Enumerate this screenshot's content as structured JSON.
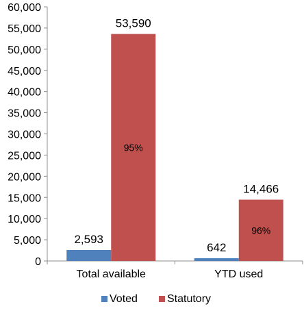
{
  "chart_data": {
    "type": "bar",
    "categories": [
      "Total available",
      "YTD used"
    ],
    "series": [
      {
        "name": "Voted",
        "color": "#4f81bd",
        "values": [
          2593,
          642
        ],
        "value_labels": [
          "2,593",
          "642"
        ],
        "inner_labels": [
          "",
          ""
        ]
      },
      {
        "name": "Statutory",
        "color": "#c0504d",
        "values": [
          53590,
          14466
        ],
        "value_labels": [
          "53,590",
          "14,466"
        ],
        "inner_labels": [
          "95%",
          "96%"
        ]
      }
    ],
    "y_ticks": [
      "0",
      "5,000",
      "10,000",
      "15,000",
      "20,000",
      "25,000",
      "30,000",
      "35,000",
      "40,000",
      "45,000",
      "50,000",
      "55,000",
      "60,000"
    ],
    "ylim": [
      0,
      60000
    ],
    "grid": false,
    "legend_position": "bottom"
  }
}
